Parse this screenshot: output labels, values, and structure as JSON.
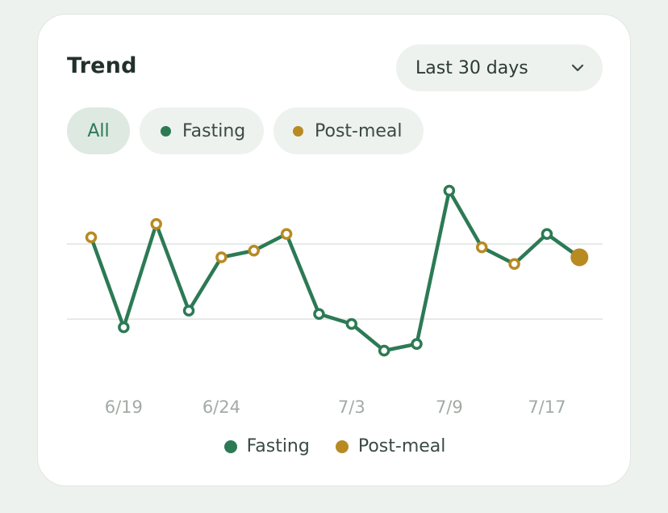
{
  "card": {
    "title": "Trend",
    "range_select": {
      "selected": "Last 30 days",
      "icon": "chevron-down-icon"
    },
    "filters": [
      {
        "label": "All",
        "active": true,
        "color": null
      },
      {
        "label": "Fasting",
        "active": false,
        "color": "#2c7a55"
      },
      {
        "label": "Post-meal",
        "active": false,
        "color": "#b88a22"
      }
    ]
  },
  "colors": {
    "line": "#2c7a55",
    "fasting": "#2c7a55",
    "post_meal": "#b88a22",
    "grid": "#e6ebe7",
    "tick": "#a3aaa5"
  },
  "chart_data": {
    "type": "line",
    "title": "",
    "xlabel": "",
    "ylabel": "",
    "x_tick_labels": [
      "6/19",
      "6/24",
      "7/3",
      "7/9",
      "7/17"
    ],
    "x_tick_indices": [
      1,
      4,
      8,
      11,
      14
    ],
    "gridlines": 2,
    "points": [
      {
        "index": 0,
        "value": 116,
        "type": "Post-meal"
      },
      {
        "index": 1,
        "value": 89,
        "type": "Fasting"
      },
      {
        "index": 2,
        "value": 120,
        "type": "Post-meal"
      },
      {
        "index": 3,
        "value": 94,
        "type": "Fasting"
      },
      {
        "index": 4,
        "value": 110,
        "type": "Post-meal"
      },
      {
        "index": 5,
        "value": 112,
        "type": "Post-meal"
      },
      {
        "index": 6,
        "value": 117,
        "type": "Post-meal"
      },
      {
        "index": 7,
        "value": 93,
        "type": "Fasting"
      },
      {
        "index": 8,
        "value": 90,
        "type": "Fasting"
      },
      {
        "index": 9,
        "value": 82,
        "type": "Fasting"
      },
      {
        "index": 10,
        "value": 84,
        "type": "Fasting"
      },
      {
        "index": 11,
        "value": 130,
        "type": "Fasting"
      },
      {
        "index": 12,
        "value": 113,
        "type": "Post-meal"
      },
      {
        "index": 13,
        "value": 108,
        "type": "Post-meal"
      },
      {
        "index": 14,
        "value": 117,
        "type": "Fasting"
      },
      {
        "index": 15,
        "value": 110,
        "type": "Post-meal",
        "latest": true
      }
    ],
    "legend": [
      {
        "name": "Fasting",
        "color": "#2c7a55"
      },
      {
        "name": "Post-meal",
        "color": "#b88a22"
      }
    ],
    "legend_position": "bottom-center",
    "grid": true
  }
}
